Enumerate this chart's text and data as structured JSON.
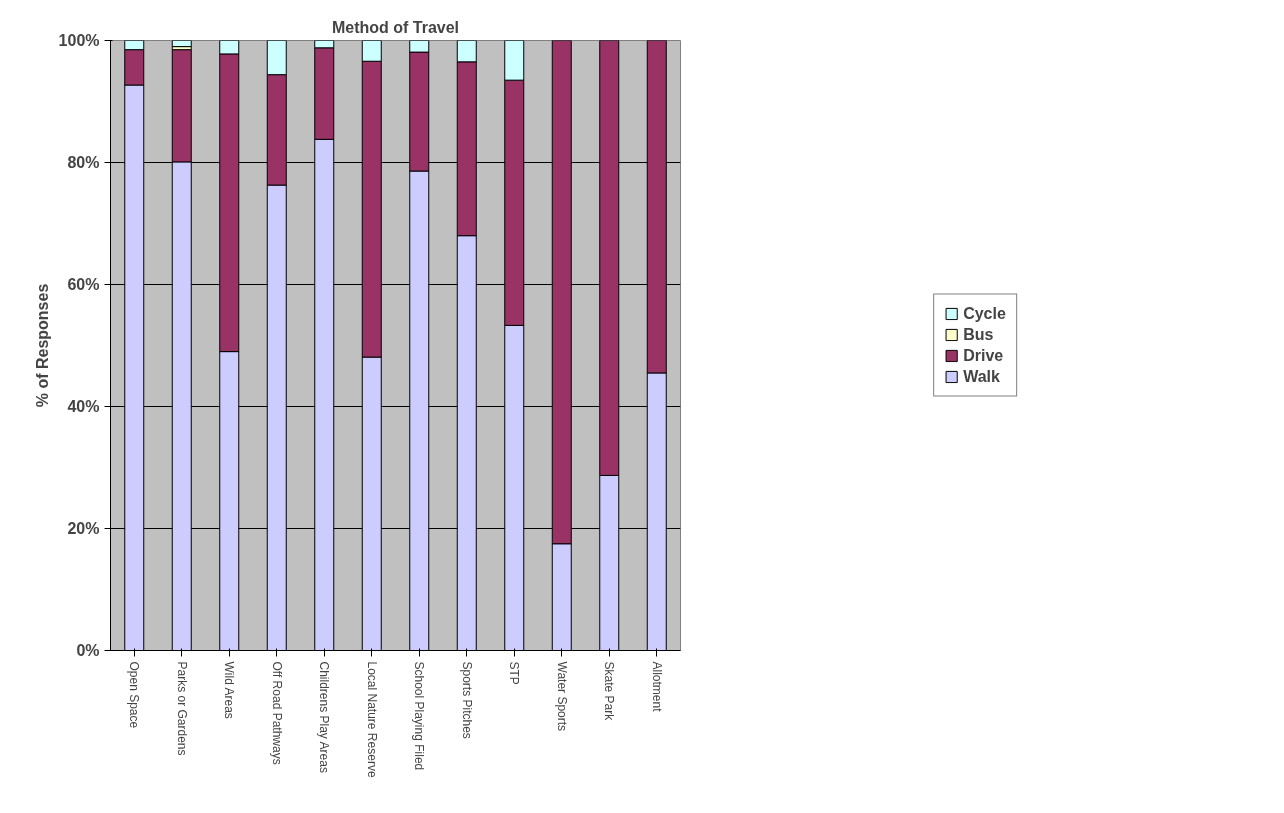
{
  "chart_data": {
    "type": "bar",
    "title": "Method of Travel",
    "ylabel": "% of Responses",
    "stacked": true,
    "categories": [
      "Open Space",
      "Parks or Gardens",
      "Wild Areas",
      "Off Road Pathways",
      "Childrens Play Areas",
      "Local Nature Reserve",
      "School Playing Filed",
      "Sports Pitches",
      "STP",
      "Water Sports",
      "Skate Park",
      "Allotment"
    ],
    "series": [
      {
        "name": "Walk",
        "color": "#ccccff",
        "values": [
          92.7,
          80.1,
          49,
          76.3,
          83.8,
          48.1,
          78.6,
          68.0,
          53.3,
          17.5,
          28.7,
          45.5
        ]
      },
      {
        "name": "Drive",
        "color": "#993366",
        "values": [
          5.8,
          18.4,
          48.8,
          18.1,
          15.0,
          48.5,
          19.5,
          28.5,
          40.2,
          82.5,
          71.3,
          54.5
        ]
      },
      {
        "name": "Bus",
        "color": "#ffffcc",
        "values": [
          0,
          0.5,
          0,
          0,
          0,
          0,
          0,
          0,
          0,
          0,
          0,
          0
        ]
      },
      {
        "name": "Cycle",
        "color": "#ccffff",
        "values": [
          1.5,
          1.0,
          2.2,
          5.6,
          1.2,
          3.4,
          1.9,
          3.5,
          6.5,
          0,
          0,
          0
        ]
      }
    ],
    "ylim": [
      0,
      100
    ],
    "yticks": [
      {
        "value": 0,
        "label": "0%"
      },
      {
        "value": 20,
        "label": "20%"
      },
      {
        "value": 40,
        "label": "40%"
      },
      {
        "value": 60,
        "label": "60%"
      },
      {
        "value": 80,
        "label": "80%"
      },
      {
        "value": 100,
        "label": "100%"
      }
    ],
    "grid": "y",
    "legend": "right"
  }
}
